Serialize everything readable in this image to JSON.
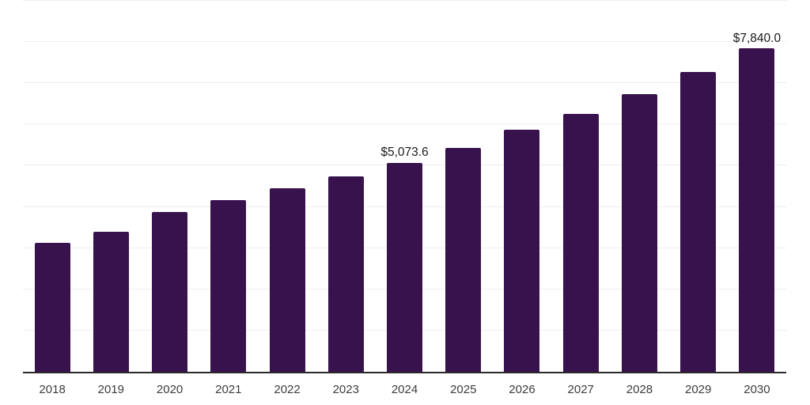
{
  "chart_data": {
    "type": "bar",
    "title": "",
    "xlabel": "",
    "ylabel": "",
    "categories": [
      "2018",
      "2019",
      "2020",
      "2021",
      "2022",
      "2023",
      "2024",
      "2025",
      "2026",
      "2027",
      "2028",
      "2029",
      "2030"
    ],
    "values": [
      3134,
      3390,
      3871,
      4171,
      4447,
      4747,
      5073.6,
      5426,
      5868,
      6257,
      6731,
      7274,
      7840
    ],
    "data_labels": [
      "",
      "",
      "",
      "",
      "",
      "",
      "$5,073.6",
      "",
      "",
      "",
      "",
      "",
      "$7,840.0"
    ],
    "ylim": [
      0,
      9000
    ],
    "gridline_step": 1000,
    "grid": true,
    "legend": false,
    "y_axis_labels_visible": false,
    "colors": {
      "bar": "#38124d",
      "gridline": "#efefef",
      "axis": "#2a2a2a",
      "tick_label": "#3c3c3c",
      "data_label": "#1a1a1a",
      "background": "#ffffff"
    }
  }
}
